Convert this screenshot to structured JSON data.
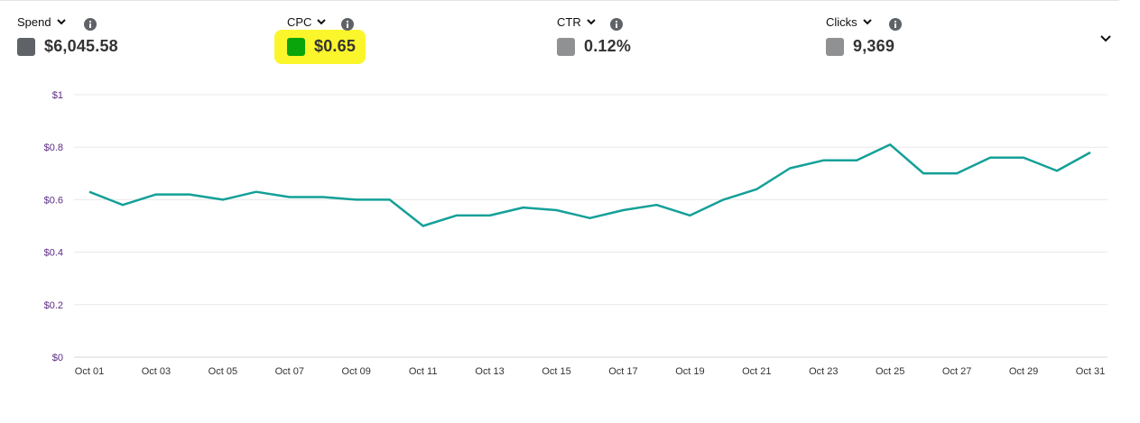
{
  "metrics": [
    {
      "label": "Spend",
      "value": "$6,045.58",
      "swatch_color": "#5f6266",
      "icon": "info-icon"
    },
    {
      "label": "CPC",
      "value": "$0.65",
      "swatch_color": "#0aa50a",
      "icon": "info-icon",
      "highlighted": true,
      "highlight_color": "#fbf52b"
    },
    {
      "label": "CTR",
      "value": "0.12%",
      "swatch_color": "#8f9193",
      "icon": "info-icon"
    },
    {
      "label": "Clicks",
      "value": "9,369",
      "swatch_color": "#8f9193",
      "icon": "info-icon"
    }
  ],
  "controls": {
    "collapse_icon": "chevron-down-icon",
    "dropdown_icon": "caret-down-icon"
  },
  "chart_data": {
    "type": "line",
    "series": [
      {
        "color": "#14a098",
        "values": [
          0.63,
          0.58,
          0.62,
          0.62,
          0.6,
          0.63,
          0.61,
          0.61,
          0.6,
          0.6,
          0.5,
          0.54,
          0.54,
          0.57,
          0.56,
          0.53,
          0.56,
          0.58,
          0.54,
          0.6,
          0.64,
          0.72,
          0.75,
          0.75,
          0.81,
          0.7,
          0.7,
          0.76,
          0.76,
          0.71,
          0.78
        ]
      }
    ],
    "x": [
      "Oct 01",
      "Oct 02",
      "Oct 03",
      "Oct 04",
      "Oct 05",
      "Oct 06",
      "Oct 07",
      "Oct 08",
      "Oct 09",
      "Oct 10",
      "Oct 11",
      "Oct 12",
      "Oct 13",
      "Oct 14",
      "Oct 15",
      "Oct 16",
      "Oct 17",
      "Oct 18",
      "Oct 19",
      "Oct 20",
      "Oct 21",
      "Oct 22",
      "Oct 23",
      "Oct 24",
      "Oct 25",
      "Oct 26",
      "Oct 27",
      "Oct 28",
      "Oct 29",
      "Oct 30",
      "Oct 31"
    ],
    "x_tick_labels": [
      "Oct 01",
      "Oct 03",
      "Oct 05",
      "Oct 07",
      "Oct 09",
      "Oct 11",
      "Oct 13",
      "Oct 15",
      "Oct 17",
      "Oct 19",
      "Oct 21",
      "Oct 23",
      "Oct 25",
      "Oct 27",
      "Oct 29",
      "Oct 31"
    ],
    "y_tick_labels": [
      "$0",
      "$0.2",
      "$0.4",
      "$0.6",
      "$0.8",
      "$1"
    ],
    "y_tick_values": [
      0,
      0.2,
      0.4,
      0.6,
      0.8,
      1
    ],
    "ylim": [
      0,
      1
    ],
    "grid": true,
    "ytick_color": "#5b2a86",
    "grid_color": "#e8e8e8"
  }
}
